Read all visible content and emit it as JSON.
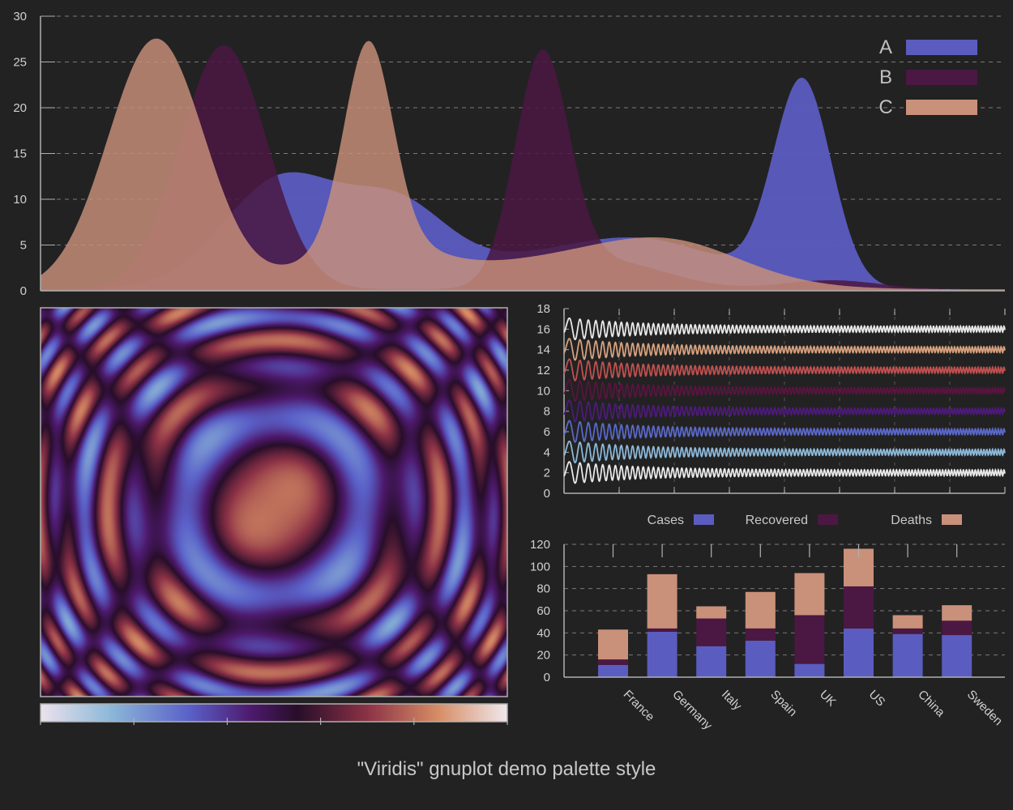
{
  "caption": "\"Viridis\" gnuplot demo palette style",
  "colors": {
    "background": "#222222",
    "axis": "#b0b0b0",
    "grid": "#7a7a7a",
    "A": "#5b5cc0",
    "B": "#4a1842",
    "C": "#c9907a",
    "white": "#e8e8e8",
    "peach": "#d6a07e",
    "red": "#c05050",
    "plum": "#5a1440",
    "purple": "#4e1a7a",
    "blue": "#5a68c8",
    "lightblue": "#8cb8d8",
    "pale": "#e6d8e8"
  },
  "chart_data": [
    {
      "type": "area",
      "ylim": [
        0,
        30
      ],
      "xlim": [
        0,
        1
      ],
      "yticks": [
        "0",
        "5",
        "10",
        "15",
        "20",
        "25",
        "30"
      ],
      "grid": true,
      "legend": "top-right",
      "series": [
        {
          "name": "A",
          "color_key": "A",
          "peaks": [
            [
              0.25,
              11.5,
              0.06
            ],
            [
              0.37,
              7.0,
              0.05
            ],
            [
              0.5,
              3.0,
              0.15
            ],
            [
              0.63,
              3.5,
              0.08
            ],
            [
              0.79,
              22.2,
              0.03
            ]
          ]
        },
        {
          "name": "B",
          "color_key": "B",
          "peaks": [
            [
              0.19,
              26.7,
              0.045
            ],
            [
              0.52,
              24.7,
              0.028
            ],
            [
              0.59,
              3.0,
              0.06
            ],
            [
              0.82,
              1.0,
              0.05
            ]
          ]
        },
        {
          "name": "C",
          "color_key": "C",
          "peaks": [
            [
              0.12,
              27.4,
              0.05
            ],
            [
              0.34,
              21.5,
              0.025
            ],
            [
              0.56,
              3.5,
              0.12
            ],
            [
              0.66,
              3.0,
              0.07
            ],
            [
              0.34,
              5.0,
              0.06
            ]
          ]
        }
      ]
    },
    {
      "type": "heatmap",
      "description_function": "cos(r) rings"
    },
    {
      "type": "line",
      "ylim": [
        0,
        18
      ],
      "yticks": [
        "0",
        "2",
        "4",
        "6",
        "8",
        "10",
        "12",
        "14",
        "16",
        "18"
      ],
      "series": [
        {
          "offset": 2,
          "color_key": "white"
        },
        {
          "offset": 4,
          "color_key": "lightblue"
        },
        {
          "offset": 6,
          "color_key": "blue"
        },
        {
          "offset": 8,
          "color_key": "purple"
        },
        {
          "offset": 10,
          "color_key": "plum"
        },
        {
          "offset": 12,
          "color_key": "red"
        },
        {
          "offset": 14,
          "color_key": "peach"
        },
        {
          "offset": 16,
          "color_key": "white"
        }
      ]
    },
    {
      "type": "bar",
      "stacked": true,
      "ylim": [
        0,
        120
      ],
      "yticks": [
        "0",
        "20",
        "40",
        "60",
        "80",
        "100",
        "120"
      ],
      "categories": [
        "France",
        "Germany",
        "Italy",
        "Spain",
        "UK",
        "US",
        "China",
        "Sweden"
      ],
      "series": [
        {
          "name": "Cases",
          "color_key": "A",
          "values": [
            11,
            41,
            28,
            33,
            12,
            44,
            39,
            38
          ]
        },
        {
          "name": "Recovered",
          "color_key": "B",
          "values": [
            5,
            3,
            25,
            11,
            44,
            38,
            5,
            13
          ]
        },
        {
          "name": "Deaths",
          "color_key": "C",
          "values": [
            27,
            49,
            11,
            33,
            38,
            34,
            12,
            14
          ]
        }
      ]
    }
  ]
}
